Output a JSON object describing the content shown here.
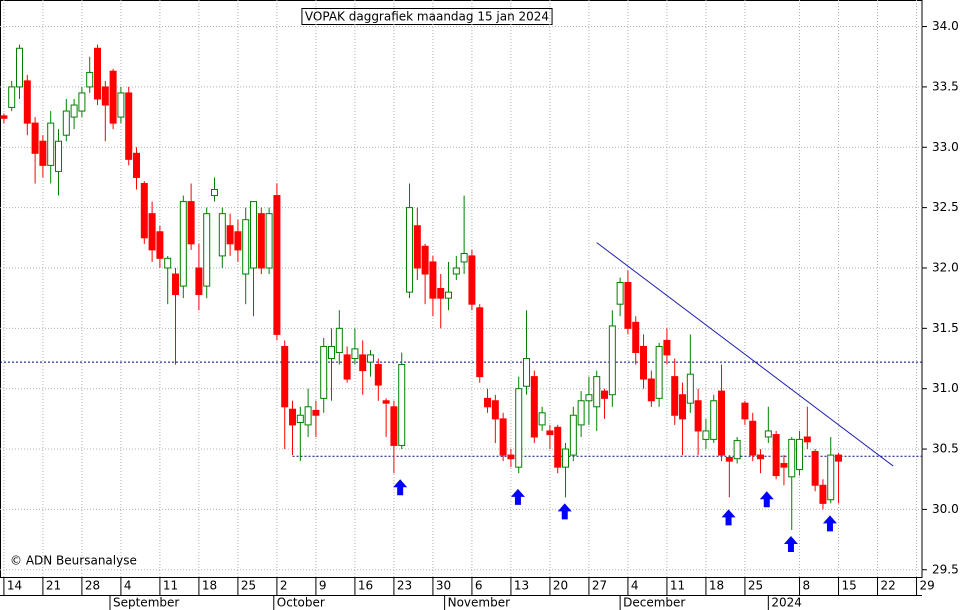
{
  "chart_data": {
    "type": "candlestick",
    "title": "VOPAK daggrafiek maandag 15 jan 2024",
    "copyright": "© ADN Beursanalyse",
    "up_color": "#008000",
    "down_color": "#ff0000",
    "grid": true,
    "x": [
      0,
      1,
      2,
      3,
      4,
      5,
      6,
      7,
      8,
      9,
      10,
      11,
      12,
      13,
      14,
      15,
      16,
      17,
      18,
      19,
      20,
      21,
      22,
      23,
      24,
      25,
      26,
      27,
      28,
      29,
      30,
      31,
      32,
      33,
      34,
      35,
      36,
      37,
      38,
      39,
      40,
      41,
      42,
      43,
      44,
      45,
      46,
      47,
      48,
      49,
      50,
      51,
      52,
      53,
      54,
      55,
      56,
      57,
      58,
      59,
      60,
      61,
      62,
      63,
      64,
      65,
      66,
      67,
      68,
      69,
      70,
      71,
      72,
      73,
      74,
      75,
      76,
      77,
      78,
      79,
      80,
      81,
      82,
      83,
      84,
      85,
      86,
      87,
      88,
      89,
      90,
      91,
      92,
      93,
      94,
      95,
      96,
      97,
      98,
      99,
      100,
      101,
      102,
      103,
      104,
      105,
      106,
      107
    ],
    "open": [
      33.26,
      33.33,
      33.5,
      33.55,
      33.2,
      33.05,
      32.85,
      32.8,
      33.1,
      33.25,
      33.3,
      33.5,
      33.82,
      33.5,
      33.63,
      33.25,
      33.45,
      32.95,
      32.7,
      32.45,
      32.3,
      32.0,
      31.95,
      31.85,
      32.55,
      32.0,
      31.85,
      32.6,
      32.1,
      32.35,
      32.3,
      31.95,
      32.0,
      32.45,
      32.0,
      32.6,
      31.35,
      30.83,
      30.72,
      30.7,
      30.82,
      30.92,
      31.25,
      31.3,
      31.28,
      31.25,
      31.28,
      31.22,
      31.2,
      30.9,
      30.85,
      30.53,
      31.8,
      32.35,
      32.18,
      32.05,
      31.83,
      31.75,
      31.95,
      32.05,
      32.1,
      31.67,
      30.92,
      30.9,
      30.75,
      30.45,
      30.35,
      31.02,
      31.1,
      30.7,
      30.65,
      30.68,
      30.35,
      30.45,
      30.7,
      30.9,
      30.85,
      30.98,
      30.95,
      31.7,
      31.88,
      31.55,
      31.35,
      31.08,
      30.92,
      31.4,
      31.1,
      30.95,
      30.88,
      30.9,
      30.58,
      30.58,
      30.98,
      30.43,
      30.42,
      30.88,
      30.73,
      30.45,
      30.6,
      30.62,
      30.38,
      30.27,
      30.33,
      30.6,
      30.48,
      30.2,
      30.08,
      30.45
    ],
    "high": [
      33.28,
      33.55,
      33.85,
      33.6,
      33.25,
      33.1,
      33.3,
      33.15,
      33.4,
      33.4,
      33.5,
      33.75,
      33.85,
      33.55,
      33.65,
      33.5,
      33.5,
      33.0,
      32.72,
      32.55,
      32.35,
      32.1,
      32.0,
      32.6,
      32.7,
      32.2,
      32.5,
      32.75,
      32.5,
      32.45,
      32.4,
      32.5,
      32.55,
      32.5,
      32.5,
      32.7,
      31.4,
      30.9,
      30.85,
      31.0,
      30.9,
      31.42,
      31.5,
      31.65,
      31.35,
      31.5,
      31.4,
      31.32,
      31.25,
      30.92,
      30.9,
      31.3,
      32.7,
      32.5,
      32.2,
      32.1,
      31.95,
      32.05,
      32.1,
      32.6,
      32.15,
      31.7,
      31.0,
      30.95,
      30.8,
      30.5,
      31.1,
      31.65,
      31.15,
      30.85,
      30.7,
      30.7,
      30.55,
      30.85,
      30.98,
      31.1,
      31.15,
      31.0,
      31.65,
      31.92,
      31.98,
      31.6,
      31.45,
      31.15,
      31.38,
      31.5,
      31.25,
      31.05,
      31.45,
      31.0,
      30.75,
      30.95,
      31.2,
      30.45,
      30.6,
      30.9,
      30.8,
      30.5,
      30.85,
      30.65,
      30.45,
      30.6,
      30.65,
      30.85,
      30.5,
      30.25,
      30.6,
      30.47
    ],
    "low": [
      33.2,
      33.3,
      33.4,
      33.1,
      32.7,
      32.75,
      32.7,
      32.6,
      33.05,
      33.15,
      33.25,
      33.45,
      33.35,
      33.05,
      33.15,
      33.2,
      32.85,
      32.65,
      32.2,
      32.05,
      32.0,
      31.7,
      31.2,
      31.75,
      32.15,
      31.65,
      31.75,
      32.55,
      32.0,
      32.1,
      32.05,
      31.7,
      31.6,
      31.95,
      31.95,
      31.4,
      30.5,
      30.45,
      30.4,
      30.6,
      30.6,
      30.8,
      30.9,
      31.2,
      31.05,
      31.2,
      30.95,
      31.1,
      30.9,
      30.6,
      30.3,
      30.5,
      31.75,
      31.9,
      31.7,
      31.6,
      31.5,
      31.65,
      31.9,
      31.95,
      31.65,
      31.05,
      30.8,
      30.55,
      30.4,
      30.35,
      30.3,
      30.95,
      30.55,
      30.65,
      30.5,
      30.3,
      30.1,
      30.4,
      30.6,
      30.7,
      30.65,
      30.75,
      30.85,
      31.6,
      31.45,
      31.2,
      31.0,
      30.85,
      30.85,
      31.2,
      30.7,
      30.45,
      30.8,
      30.45,
      30.5,
      30.55,
      30.4,
      30.1,
      30.38,
      30.7,
      30.4,
      30.3,
      30.55,
      30.25,
      30.2,
      29.83,
      30.28,
      30.5,
      30.15,
      30.0,
      30.05,
      30.05
    ],
    "close": [
      33.24,
      33.5,
      33.82,
      33.2,
      32.95,
      32.85,
      33.2,
      33.05,
      33.3,
      33.35,
      33.45,
      33.62,
      33.4,
      33.35,
      33.2,
      33.45,
      32.9,
      32.75,
      32.25,
      32.15,
      32.08,
      32.08,
      31.78,
      32.55,
      32.2,
      31.78,
      32.45,
      32.65,
      32.45,
      32.2,
      32.15,
      32.4,
      32.55,
      32.0,
      32.45,
      31.45,
      30.85,
      30.7,
      30.78,
      30.85,
      30.78,
      31.35,
      31.35,
      31.5,
      31.08,
      31.33,
      31.15,
      31.28,
      31.03,
      30.88,
      30.53,
      31.2,
      32.5,
      32.0,
      31.95,
      31.75,
      31.75,
      31.8,
      32.0,
      32.12,
      31.7,
      31.1,
      30.85,
      30.75,
      30.45,
      30.42,
      31.0,
      31.25,
      30.6,
      30.8,
      30.62,
      30.35,
      30.5,
      30.78,
      30.9,
      30.95,
      31.1,
      30.92,
      31.52,
      31.88,
      31.5,
      31.3,
      31.08,
      30.9,
      31.35,
      31.28,
      30.78,
      30.75,
      31.12,
      30.65,
      30.65,
      30.9,
      30.45,
      30.4,
      30.57,
      30.75,
      30.45,
      30.42,
      30.65,
      30.28,
      30.35,
      30.58,
      30.58,
      30.56,
      30.2,
      30.05,
      30.45,
      30.4
    ],
    "xlim": [
      -0.5,
      117.7
    ],
    "xticks": [
      {
        "value": 0,
        "label": "14"
      },
      {
        "value": 5,
        "label": "21"
      },
      {
        "value": 10,
        "label": "28"
      },
      {
        "value": 15,
        "label": "4"
      },
      {
        "value": 20,
        "label": "11"
      },
      {
        "value": 25,
        "label": "18"
      },
      {
        "value": 30,
        "label": "25"
      },
      {
        "value": 35,
        "label": "2"
      },
      {
        "value": 40,
        "label": "9"
      },
      {
        "value": 45,
        "label": "16"
      },
      {
        "value": 50,
        "label": "23"
      },
      {
        "value": 55,
        "label": "30"
      },
      {
        "value": 60,
        "label": "6"
      },
      {
        "value": 65,
        "label": "13"
      },
      {
        "value": 70,
        "label": "20"
      },
      {
        "value": 75,
        "label": "27"
      },
      {
        "value": 80,
        "label": "4"
      },
      {
        "value": 85,
        "label": "11"
      },
      {
        "value": 90,
        "label": "18"
      },
      {
        "value": 95,
        "label": "25"
      },
      {
        "value": 102,
        "label": "8"
      },
      {
        "value": 107,
        "label": "15"
      },
      {
        "value": 112,
        "label": "22"
      },
      {
        "value": 117,
        "label": "29"
      }
    ],
    "month_labels": [
      {
        "value": 13.6,
        "label": "September"
      },
      {
        "value": 34.6,
        "label": "October"
      },
      {
        "value": 56.5,
        "label": "November"
      },
      {
        "value": 79,
        "label": "December"
      },
      {
        "value": 98,
        "label": "2024"
      }
    ],
    "ylim": [
      29.44,
      34.22
    ],
    "yticks": [
      {
        "value": 29.5,
        "label": "29.5"
      },
      {
        "value": 30,
        "label": "30.0"
      },
      {
        "value": 30.5,
        "label": "30.5"
      },
      {
        "value": 31,
        "label": "31.0"
      },
      {
        "value": 31.5,
        "label": "31.5"
      },
      {
        "value": 32,
        "label": "32.0"
      },
      {
        "value": 32.5,
        "label": "32.5"
      },
      {
        "value": 33,
        "label": "33.0"
      },
      {
        "value": 33.5,
        "label": "33.5"
      },
      {
        "value": 34,
        "label": "34.0"
      }
    ],
    "hlines": [
      {
        "value": 31.22,
        "from": -0.5
      },
      {
        "value": 30.44,
        "from": 37
      }
    ],
    "hline_color": "#000080",
    "trendline": {
      "x": [
        76,
        114
      ],
      "y": [
        32.21,
        30.36
      ],
      "color": "#2020b0"
    },
    "arrows": {
      "x": [
        50.8,
        65.9,
        71.9,
        92.9,
        97.8,
        100.9,
        105.9
      ],
      "y": [
        30.25,
        30.17,
        30.05,
        30.0,
        30.15,
        29.78,
        29.95
      ],
      "color": "#0000ff"
    }
  }
}
